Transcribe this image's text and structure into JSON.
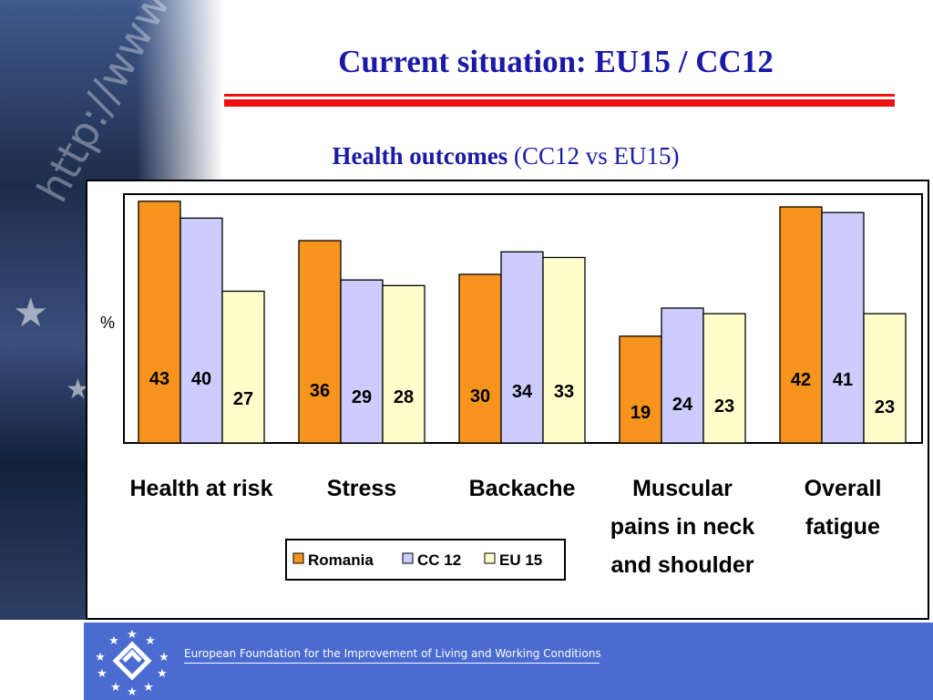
{
  "slide": {
    "title": "Current situation: EU15 / CC12",
    "subtitle_bold": "Health outcomes",
    "subtitle_rest": " (CC12 vs EU15)",
    "background_text": "http://www",
    "footer_text": "European Foundation for the Improvement of Living and Working Conditions",
    "colors": {
      "title": "#1a1aa6",
      "rule": "#ee1111",
      "footer": "#4a6bd0"
    }
  },
  "chart_data": {
    "type": "bar",
    "ylabel": "%",
    "ylim": [
      0,
      60
    ],
    "categories": [
      [
        "Health at risk"
      ],
      [
        "Stress"
      ],
      [
        "Backache"
      ],
      [
        "Muscular",
        "pains in neck",
        "and shoulder"
      ],
      [
        "Overall",
        "fatigue"
      ]
    ],
    "series": [
      {
        "name": "Romania",
        "color": "#f7941d",
        "values": [
          43,
          36,
          30,
          19,
          42
        ]
      },
      {
        "name": "CC 12",
        "color": "#ccccff",
        "values": [
          40,
          29,
          34,
          24,
          41
        ]
      },
      {
        "name": "EU 15",
        "color": "#ffffcc",
        "values": [
          27,
          28,
          33,
          23,
          23
        ]
      }
    ],
    "legend_position": "bottom-left",
    "grid": false
  }
}
